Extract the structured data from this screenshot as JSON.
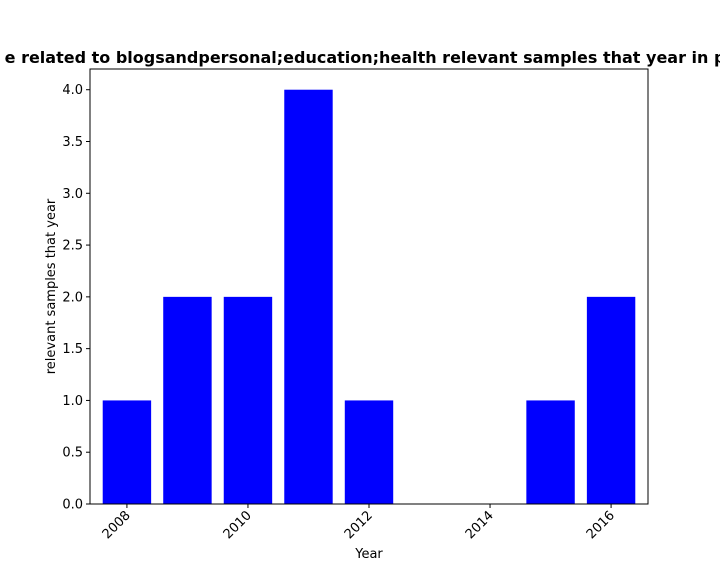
{
  "chart_data": {
    "type": "bar",
    "title": "...e related to blogsandpersonal;education;health relevant samples that year in pr...",
    "title_visible": "e related to blogsandpersonal;education;health relevant samples that year in pr",
    "xlabel": "Year",
    "ylabel": "relevant samples that year",
    "x": [
      2008,
      2009,
      2010,
      2011,
      2012,
      2015,
      2016
    ],
    "values": [
      1,
      2,
      2,
      4,
      1,
      1,
      2
    ],
    "xlim": [
      2007.39,
      2016.61
    ],
    "ylim": [
      0,
      4.2
    ],
    "xticks": [
      2008,
      2010,
      2012,
      2014,
      2016
    ],
    "yticks": [
      "0.0",
      "0.5",
      "1.0",
      "1.5",
      "2.0",
      "2.5",
      "3.0",
      "3.5",
      "4.0"
    ],
    "bar_color": "#0000ff",
    "grid": false,
    "legend": "none"
  }
}
